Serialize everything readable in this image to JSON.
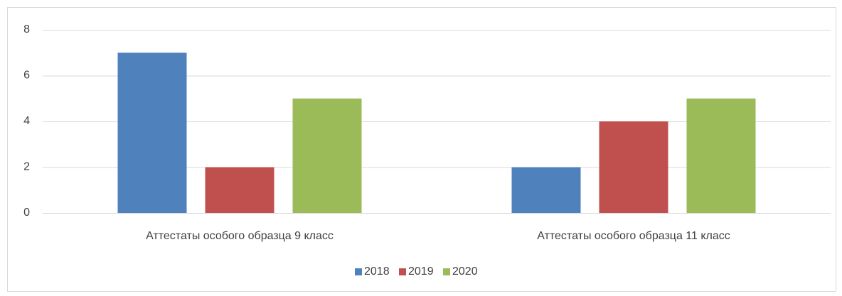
{
  "chart_data": {
    "type": "bar",
    "categories": [
      "Аттестаты особого образца 9 класс",
      "Аттестаты особого образца 11 класс"
    ],
    "series": [
      {
        "name": "2018",
        "color": "#4f81bd",
        "values": [
          7,
          2
        ]
      },
      {
        "name": "2019",
        "color": "#c0504d",
        "values": [
          2,
          4
        ]
      },
      {
        "name": "2020",
        "color": "#9bbb59",
        "values": [
          5,
          5
        ]
      }
    ],
    "ylim": [
      0,
      8
    ],
    "yticks": [
      0,
      2,
      4,
      6,
      8
    ],
    "grid": true,
    "legend": "bottom"
  }
}
